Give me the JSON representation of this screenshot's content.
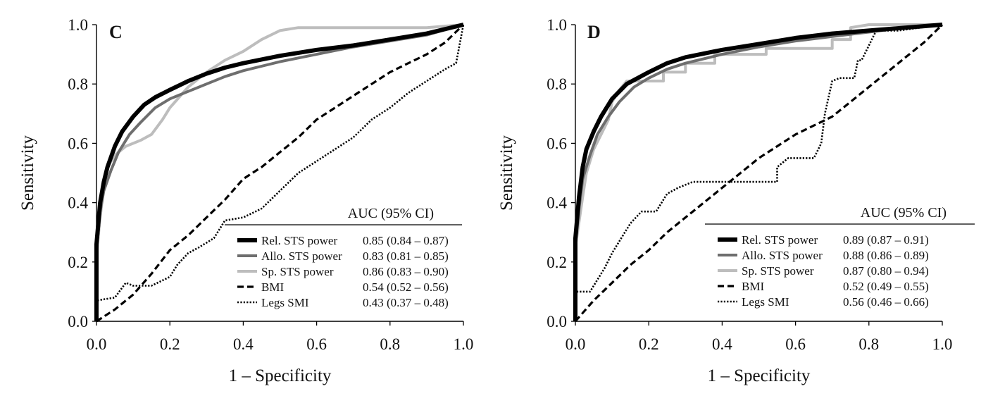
{
  "chart_data": [
    {
      "type": "line",
      "panel_label": "C",
      "xlabel": "1 – Specificity",
      "ylabel": "Sensitivity",
      "xlim": [
        0,
        1
      ],
      "ylim": [
        0,
        1
      ],
      "x_ticks": [
        "0.0",
        "0.2",
        "0.4",
        "0.6",
        "0.8",
        "1.0"
      ],
      "y_ticks": [
        "0.0",
        "0.2",
        "0.4",
        "0.6",
        "0.8",
        "1.0"
      ],
      "legend_position": "bottom-right",
      "legend_header": "AUC (95% CI)",
      "series": [
        {
          "name": "Rel. STS power",
          "auc": "0.85 (0.84 – 0.87)",
          "style": "solid-thick",
          "color": "#000000",
          "points": [
            [
              0,
              0
            ],
            [
              0,
              0.26
            ],
            [
              0.01,
              0.4
            ],
            [
              0.02,
              0.47
            ],
            [
              0.03,
              0.52
            ],
            [
              0.05,
              0.59
            ],
            [
              0.07,
              0.64
            ],
            [
              0.1,
              0.69
            ],
            [
              0.13,
              0.73
            ],
            [
              0.16,
              0.755
            ],
            [
              0.2,
              0.78
            ],
            [
              0.25,
              0.81
            ],
            [
              0.3,
              0.835
            ],
            [
              0.35,
              0.855
            ],
            [
              0.4,
              0.87
            ],
            [
              0.5,
              0.895
            ],
            [
              0.6,
              0.915
            ],
            [
              0.7,
              0.93
            ],
            [
              0.8,
              0.95
            ],
            [
              0.9,
              0.97
            ],
            [
              1,
              1
            ]
          ]
        },
        {
          "name": "Allo. STS power",
          "auc": "0.83 (0.81 – 0.85)",
          "style": "solid",
          "color": "#6e6e6e",
          "points": [
            [
              0,
              0
            ],
            [
              0,
              0.24
            ],
            [
              0.01,
              0.37
            ],
            [
              0.02,
              0.44
            ],
            [
              0.04,
              0.51
            ],
            [
              0.06,
              0.57
            ],
            [
              0.09,
              0.63
            ],
            [
              0.12,
              0.67
            ],
            [
              0.16,
              0.72
            ],
            [
              0.2,
              0.75
            ],
            [
              0.25,
              0.775
            ],
            [
              0.3,
              0.8
            ],
            [
              0.35,
              0.825
            ],
            [
              0.4,
              0.845
            ],
            [
              0.5,
              0.875
            ],
            [
              0.6,
              0.9
            ],
            [
              0.7,
              0.925
            ],
            [
              0.8,
              0.945
            ],
            [
              0.9,
              0.965
            ],
            [
              1,
              1
            ]
          ]
        },
        {
          "name": "Sp. STS power",
          "auc": "0.86 (0.83 – 0.90)",
          "style": "solid",
          "color": "#bdbdbd",
          "points": [
            [
              0,
              0
            ],
            [
              0,
              0.22
            ],
            [
              0.01,
              0.35
            ],
            [
              0.02,
              0.45
            ],
            [
              0.03,
              0.52
            ],
            [
              0.05,
              0.56
            ],
            [
              0.08,
              0.59
            ],
            [
              0.12,
              0.61
            ],
            [
              0.15,
              0.63
            ],
            [
              0.18,
              0.68
            ],
            [
              0.2,
              0.72
            ],
            [
              0.25,
              0.79
            ],
            [
              0.3,
              0.84
            ],
            [
              0.35,
              0.88
            ],
            [
              0.4,
              0.91
            ],
            [
              0.45,
              0.95
            ],
            [
              0.5,
              0.98
            ],
            [
              0.55,
              0.99
            ],
            [
              0.7,
              0.99
            ],
            [
              0.9,
              0.99
            ],
            [
              1,
              1
            ]
          ]
        },
        {
          "name": "BMI",
          "auc": "0.54 (0.52 – 0.56)",
          "style": "dashed",
          "color": "#000000",
          "points": [
            [
              0,
              0
            ],
            [
              0.05,
              0.04
            ],
            [
              0.1,
              0.09
            ],
            [
              0.15,
              0.16
            ],
            [
              0.2,
              0.24
            ],
            [
              0.25,
              0.29
            ],
            [
              0.3,
              0.35
            ],
            [
              0.35,
              0.41
            ],
            [
              0.4,
              0.48
            ],
            [
              0.45,
              0.52
            ],
            [
              0.5,
              0.57
            ],
            [
              0.55,
              0.62
            ],
            [
              0.6,
              0.68
            ],
            [
              0.65,
              0.72
            ],
            [
              0.7,
              0.76
            ],
            [
              0.75,
              0.8
            ],
            [
              0.8,
              0.84
            ],
            [
              0.85,
              0.87
            ],
            [
              0.9,
              0.9
            ],
            [
              0.95,
              0.94
            ],
            [
              1,
              1
            ]
          ]
        },
        {
          "name": "Legs SMI",
          "auc": "0.43 (0.37 – 0.48)",
          "style": "dotted",
          "color": "#000000",
          "points": [
            [
              0,
              0
            ],
            [
              0,
              0.07
            ],
            [
              0.05,
              0.08
            ],
            [
              0.08,
              0.13
            ],
            [
              0.1,
              0.12
            ],
            [
              0.15,
              0.12
            ],
            [
              0.2,
              0.15
            ],
            [
              0.22,
              0.19
            ],
            [
              0.25,
              0.23
            ],
            [
              0.28,
              0.25
            ],
            [
              0.32,
              0.28
            ],
            [
              0.35,
              0.34
            ],
            [
              0.4,
              0.35
            ],
            [
              0.45,
              0.38
            ],
            [
              0.5,
              0.44
            ],
            [
              0.55,
              0.5
            ],
            [
              0.6,
              0.54
            ],
            [
              0.65,
              0.58
            ],
            [
              0.7,
              0.62
            ],
            [
              0.75,
              0.68
            ],
            [
              0.8,
              0.72
            ],
            [
              0.85,
              0.77
            ],
            [
              0.9,
              0.81
            ],
            [
              0.95,
              0.85
            ],
            [
              0.98,
              0.87
            ],
            [
              1,
              1
            ]
          ]
        }
      ]
    },
    {
      "type": "line",
      "panel_label": "D",
      "xlabel": "1 – Specificity",
      "ylabel": "Sensitivity",
      "xlim": [
        0,
        1
      ],
      "ylim": [
        0,
        1
      ],
      "x_ticks": [
        "0.0",
        "0.2",
        "0.4",
        "0.6",
        "0.8",
        "1.0"
      ],
      "y_ticks": [
        "0.0",
        "0.2",
        "0.4",
        "0.6",
        "0.8",
        "1.0"
      ],
      "legend_position": "bottom-right",
      "legend_header": "AUC (95% CI)",
      "series": [
        {
          "name": "Rel. STS power",
          "auc": "0.89 (0.87 – 0.91)",
          "style": "solid-thick",
          "color": "#000000",
          "points": [
            [
              0,
              0
            ],
            [
              0,
              0.28
            ],
            [
              0.01,
              0.42
            ],
            [
              0.02,
              0.52
            ],
            [
              0.03,
              0.58
            ],
            [
              0.05,
              0.64
            ],
            [
              0.07,
              0.69
            ],
            [
              0.1,
              0.75
            ],
            [
              0.14,
              0.8
            ],
            [
              0.2,
              0.84
            ],
            [
              0.25,
              0.87
            ],
            [
              0.3,
              0.89
            ],
            [
              0.4,
              0.915
            ],
            [
              0.5,
              0.935
            ],
            [
              0.6,
              0.955
            ],
            [
              0.7,
              0.97
            ],
            [
              0.8,
              0.98
            ],
            [
              0.9,
              0.99
            ],
            [
              1,
              1
            ]
          ]
        },
        {
          "name": "Allo. STS power",
          "auc": "0.88 (0.86 – 0.89)",
          "style": "solid",
          "color": "#6e6e6e",
          "points": [
            [
              0,
              0
            ],
            [
              0,
              0.25
            ],
            [
              0.01,
              0.38
            ],
            [
              0.02,
              0.48
            ],
            [
              0.04,
              0.56
            ],
            [
              0.06,
              0.63
            ],
            [
              0.09,
              0.69
            ],
            [
              0.12,
              0.74
            ],
            [
              0.16,
              0.79
            ],
            [
              0.2,
              0.82
            ],
            [
              0.25,
              0.85
            ],
            [
              0.3,
              0.87
            ],
            [
              0.4,
              0.9
            ],
            [
              0.5,
              0.925
            ],
            [
              0.6,
              0.945
            ],
            [
              0.7,
              0.96
            ],
            [
              0.8,
              0.975
            ],
            [
              0.9,
              0.99
            ],
            [
              1,
              1
            ]
          ]
        },
        {
          "name": "Sp. STS power",
          "auc": "0.87 (0.80 – 0.94)",
          "style": "solid",
          "color": "#bdbdbd",
          "points": [
            [
              0,
              0
            ],
            [
              0,
              0.25
            ],
            [
              0.02,
              0.42
            ],
            [
              0.03,
              0.5
            ],
            [
              0.05,
              0.58
            ],
            [
              0.07,
              0.63
            ],
            [
              0.09,
              0.68
            ],
            [
              0.1,
              0.74
            ],
            [
              0.12,
              0.78
            ],
            [
              0.14,
              0.81
            ],
            [
              0.24,
              0.81
            ],
            [
              0.24,
              0.84
            ],
            [
              0.3,
              0.84
            ],
            [
              0.3,
              0.87
            ],
            [
              0.38,
              0.87
            ],
            [
              0.38,
              0.9
            ],
            [
              0.52,
              0.9
            ],
            [
              0.52,
              0.92
            ],
            [
              0.7,
              0.92
            ],
            [
              0.7,
              0.95
            ],
            [
              0.75,
              0.95
            ],
            [
              0.75,
              0.99
            ],
            [
              0.8,
              1.0
            ],
            [
              1,
              1
            ]
          ]
        },
        {
          "name": "BMI",
          "auc": "0.52 (0.49 – 0.55)",
          "style": "dashed",
          "color": "#000000",
          "points": [
            [
              0,
              0
            ],
            [
              0.05,
              0.07
            ],
            [
              0.1,
              0.13
            ],
            [
              0.15,
              0.19
            ],
            [
              0.2,
              0.24
            ],
            [
              0.25,
              0.3
            ],
            [
              0.3,
              0.35
            ],
            [
              0.35,
              0.4
            ],
            [
              0.4,
              0.45
            ],
            [
              0.45,
              0.5
            ],
            [
              0.5,
              0.55
            ],
            [
              0.55,
              0.59
            ],
            [
              0.6,
              0.63
            ],
            [
              0.65,
              0.66
            ],
            [
              0.7,
              0.69
            ],
            [
              0.75,
              0.74
            ],
            [
              0.8,
              0.79
            ],
            [
              0.85,
              0.84
            ],
            [
              0.9,
              0.89
            ],
            [
              0.95,
              0.94
            ],
            [
              1,
              1
            ]
          ]
        },
        {
          "name": "Legs SMI",
          "auc": "0.56 (0.46 – 0.66)",
          "style": "dotted",
          "color": "#000000",
          "points": [
            [
              0,
              0
            ],
            [
              0,
              0.1
            ],
            [
              0.04,
              0.1
            ],
            [
              0.08,
              0.18
            ],
            [
              0.1,
              0.23
            ],
            [
              0.12,
              0.27
            ],
            [
              0.15,
              0.33
            ],
            [
              0.18,
              0.37
            ],
            [
              0.22,
              0.37
            ],
            [
              0.25,
              0.43
            ],
            [
              0.28,
              0.45
            ],
            [
              0.32,
              0.47
            ],
            [
              0.4,
              0.47
            ],
            [
              0.5,
              0.47
            ],
            [
              0.55,
              0.47
            ],
            [
              0.55,
              0.52
            ],
            [
              0.58,
              0.55
            ],
            [
              0.65,
              0.55
            ],
            [
              0.67,
              0.6
            ],
            [
              0.68,
              0.7
            ],
            [
              0.7,
              0.81
            ],
            [
              0.72,
              0.82
            ],
            [
              0.76,
              0.82
            ],
            [
              0.77,
              0.88
            ],
            [
              0.78,
              0.88
            ],
            [
              0.8,
              0.93
            ],
            [
              0.82,
              0.98
            ],
            [
              0.88,
              0.98
            ],
            [
              1,
              1
            ]
          ]
        }
      ]
    }
  ]
}
